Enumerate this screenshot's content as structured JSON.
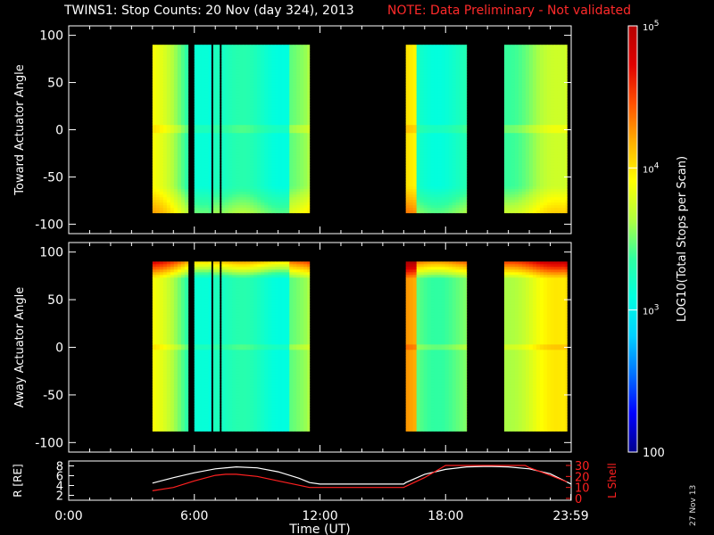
{
  "header": {
    "title": "TWINS1: Stop Counts: 20 Nov (day 324), 2013",
    "note": "NOTE: Data Preliminary - Not validated",
    "note_color": "#ff2a2a"
  },
  "stamp": "27 Nov 13",
  "chart_data": [
    {
      "type": "heatmap",
      "ylabel": "Toward Actuator Angle",
      "ylim": [
        -110,
        110
      ],
      "yticks": [
        "100",
        "50",
        "0",
        "-50",
        "-100"
      ],
      "xlim_hours": [
        0,
        24
      ],
      "data_blocks_hours": [
        [
          4.0,
          5.7
        ],
        [
          6.0,
          6.8
        ],
        [
          6.9,
          7.2
        ],
        [
          7.3,
          11.5
        ],
        [
          16.1,
          19.0
        ],
        [
          20.8,
          23.8
        ]
      ],
      "angle_range": [
        -88,
        90
      ],
      "edge_band": "top-and-bottom",
      "grid": false
    },
    {
      "type": "heatmap",
      "ylabel": "Away Actuator Angle",
      "ylim": [
        -110,
        110
      ],
      "yticks": [
        "100",
        "50",
        "0",
        "-50",
        "-100"
      ],
      "xlim_hours": [
        0,
        24
      ],
      "data_blocks_hours": [
        [
          4.0,
          5.7
        ],
        [
          6.0,
          6.8
        ],
        [
          6.9,
          7.2
        ],
        [
          7.3,
          11.5
        ],
        [
          16.1,
          19.0
        ],
        [
          20.8,
          23.8
        ]
      ],
      "angle_range": [
        -88,
        90
      ],
      "edge_band": "top",
      "grid": false
    },
    {
      "type": "line",
      "ylabel": "R [RE]",
      "ylabel_right": "L Shell",
      "ylim": [
        1,
        9
      ],
      "yticks": [
        "8",
        "6",
        "4",
        "2"
      ],
      "ylim_right": [
        0,
        30
      ],
      "yticks_right": [
        "30",
        "20",
        "10",
        "0"
      ],
      "xlabel": "Time (UT)",
      "xticks": [
        "0:00",
        "6:00",
        "12:00",
        "18:00",
        "23:59"
      ],
      "xtick_hours": [
        0,
        6,
        12,
        18,
        23.98
      ],
      "series": [
        {
          "name": "R [RE]",
          "color": "#ffffff",
          "x": [
            4.0,
            5.0,
            6.0,
            7.0,
            8.0,
            9.0,
            10.0,
            11.0,
            11.5,
            12.0,
            14.0,
            16.0,
            16.1,
            17.0,
            18.0,
            19.0,
            20.0,
            21.0,
            22.0,
            23.0,
            24.0
          ],
          "values": [
            4.5,
            5.6,
            6.6,
            7.4,
            7.8,
            7.6,
            6.8,
            5.5,
            4.6,
            4.3,
            4.3,
            4.3,
            4.6,
            6.3,
            7.3,
            7.8,
            7.9,
            7.8,
            7.4,
            6.4,
            4.3
          ]
        },
        {
          "name": "L Shell",
          "color": "#ff2020",
          "x": [
            4.0,
            5.0,
            6.0,
            7.0,
            7.5,
            8.0,
            9.0,
            10.0,
            11.0,
            11.5,
            12.0,
            14.0,
            16.0,
            16.1,
            17.0,
            18.0,
            18.2,
            21.8,
            22.0,
            23.0,
            23.8
          ],
          "values": [
            7,
            10,
            16,
            21,
            22,
            22,
            20,
            16,
            12,
            10,
            10,
            10,
            10,
            11,
            19,
            30,
            30,
            30,
            28,
            21,
            15
          ]
        }
      ],
      "grid": false
    }
  ],
  "colorbar": {
    "label": "LOG10(Total Stops per Scan)",
    "ticks": [
      "10^5",
      "10^4",
      "10^3",
      "100"
    ],
    "log_min": 2,
    "log_max": 5,
    "colors": [
      "#00008c",
      "#0000ff",
      "#0070ff",
      "#00d0ff",
      "#00ffe0",
      "#30ffa0",
      "#b0ff40",
      "#ffff00",
      "#ffb000",
      "#ff5000",
      "#e00000",
      "#b40000"
    ]
  }
}
